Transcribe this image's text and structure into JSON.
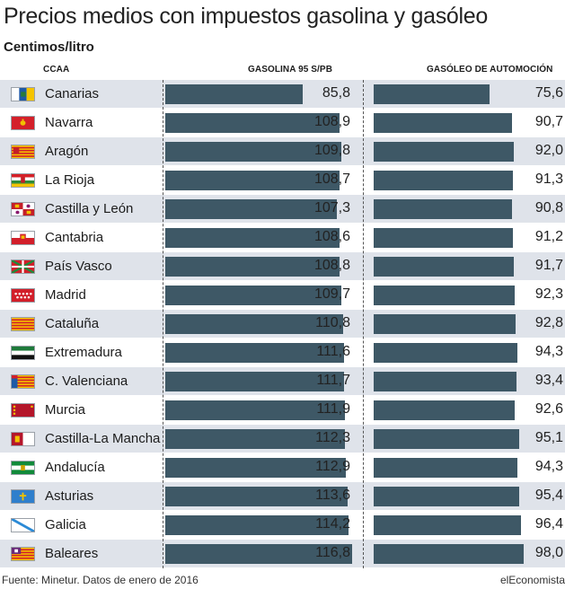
{
  "title": "Precios medios con impuestos gasolina y gasóleo",
  "subtitle": "Centimos/litro",
  "footer": {
    "source": "Fuente: Minetur. Datos de enero de 2016",
    "brand": "elEconomista"
  },
  "colors": {
    "bar": "#3e5866",
    "row_stripe": "#dfe3ea"
  },
  "chart_data": {
    "type": "bar",
    "orientation": "horizontal",
    "title": "Precios medios con impuestos gasolina y gasóleo",
    "subtitle": "Centimos/litro",
    "category_header": "CCAA",
    "categories": [
      "Canarias",
      "Navarra",
      "Aragón",
      "La Rioja",
      "Castilla y León",
      "Cantabria",
      "País Vasco",
      "Madrid",
      "Cataluña",
      "Extremadura",
      "C. Valenciana",
      "Murcia",
      "Castilla-La Mancha",
      "Andalucía",
      "Asturias",
      "Galicia",
      "Baleares"
    ],
    "series": [
      {
        "name": "GASOLINA 95 S/PB",
        "values": [
          85.8,
          108.9,
          109.8,
          108.7,
          107.3,
          108.6,
          108.8,
          109.7,
          110.8,
          111.6,
          111.7,
          111.9,
          112.3,
          112.9,
          113.6,
          114.2,
          116.8
        ]
      },
      {
        "name": "GASÓLEO DE AUTOMOCIÓN",
        "values": [
          75.6,
          90.7,
          92.0,
          91.3,
          90.8,
          91.2,
          91.7,
          92.3,
          92.8,
          94.3,
          93.4,
          92.6,
          95.1,
          94.3,
          95.4,
          96.4,
          98.0
        ]
      }
    ],
    "value_labels": [
      [
        "85,8",
        "108,9",
        "109,8",
        "108,7",
        "107,3",
        "108,6",
        "108,8",
        "109,7",
        "110,8",
        "111,6",
        "111,7",
        "111,9",
        "112,3",
        "112,9",
        "113,6",
        "114,2",
        "116,8"
      ],
      [
        "75,6",
        "90,7",
        "92,0",
        "91,3",
        "90,8",
        "91,2",
        "91,7",
        "92,3",
        "92,8",
        "94,3",
        "93,4",
        "92,6",
        "95,1",
        "94,3",
        "95,4",
        "96,4",
        "98,0"
      ]
    ],
    "flag_icons": [
      "flag-canarias-icon",
      "flag-navarra-icon",
      "flag-aragon-icon",
      "flag-la-rioja-icon",
      "flag-castilla-y-leon-icon",
      "flag-cantabria-icon",
      "flag-pais-vasco-icon",
      "flag-madrid-icon",
      "flag-cataluna-icon",
      "flag-extremadura-icon",
      "flag-c-valenciana-icon",
      "flag-murcia-icon",
      "flag-castilla-la-mancha-icon",
      "flag-andalucia-icon",
      "flag-asturias-icon",
      "flag-galicia-icon",
      "flag-baleares-icon"
    ],
    "legend": "none",
    "grid": false
  }
}
